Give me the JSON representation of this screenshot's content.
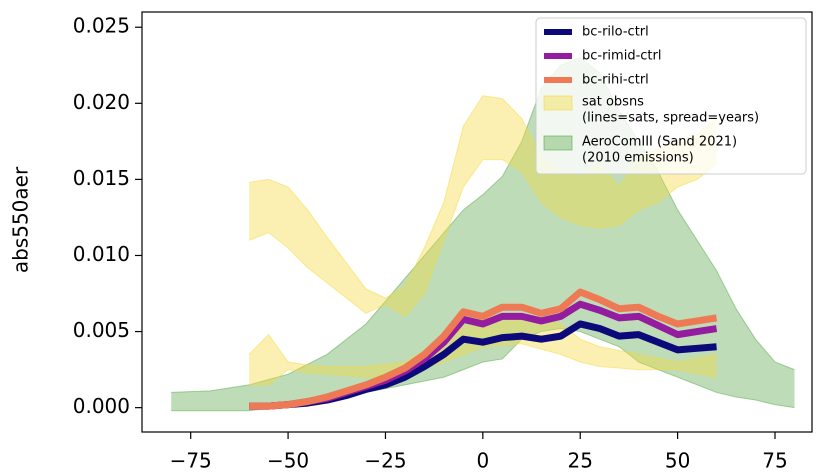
{
  "chart_data": {
    "type": "line",
    "ylabel": "abs550aer",
    "xlim": [
      -87.5,
      84.5
    ],
    "ylim": [
      -0.0016,
      0.026
    ],
    "xticks": [
      {
        "value": -75,
        "label": "−75"
      },
      {
        "value": -50,
        "label": "−50"
      },
      {
        "value": -25,
        "label": "−25"
      },
      0,
      25,
      50,
      75
    ],
    "yticks": [
      {
        "value": 0,
        "label": "0.000"
      },
      {
        "value": 0.005,
        "label": "0.005"
      },
      {
        "value": 0.01,
        "label": "0.010"
      },
      {
        "value": 0.015,
        "label": "0.015"
      },
      {
        "value": 0.02,
        "label": "0.020"
      },
      {
        "value": 0.025,
        "label": "0.025"
      }
    ],
    "legend": "upper right",
    "bands": [
      {
        "name": [
          "AeroComIII (Sand 2021)",
          "(2010 emissions)"
        ],
        "color": "#5aa84a",
        "pieces": [
          {
            "x": [
              -80,
              -70,
              -60,
              -50,
              -40,
              -30,
              -20,
              -10,
              -5,
              0,
              5,
              10,
              15,
              20,
              25,
              30,
              35,
              40,
              45,
              50,
              55,
              60,
              65,
              70,
              75,
              80
            ],
            "lower": [
              -0.0002,
              -0.0002,
              -0.0002,
              0.0001,
              0.0005,
              0.001,
              0.0015,
              0.002,
              0.0025,
              0.003,
              0.0032,
              0.0045,
              0.005,
              0.0052,
              0.005,
              0.0045,
              0.004,
              0.003,
              0.0025,
              0.002,
              0.0015,
              0.001,
              0.0007,
              0.0005,
              0.0002,
              0.0
            ],
            "upper": [
              0.001,
              0.0011,
              0.0015,
              0.0022,
              0.0035,
              0.0055,
              0.0085,
              0.0115,
              0.013,
              0.014,
              0.0152,
              0.0175,
              0.021,
              0.0225,
              0.023,
              0.022,
              0.0195,
              0.0175,
              0.0155,
              0.013,
              0.011,
              0.009,
              0.0065,
              0.0045,
              0.003,
              0.0025
            ]
          }
        ]
      },
      {
        "name": [
          "sat obsns",
          "(lines=sats, spread=years)"
        ],
        "color": "#f5d93c",
        "pieces": [
          {
            "x": [
              -60,
              -55,
              -50,
              -45,
              -40,
              -35,
              -30,
              -25,
              -20,
              -15,
              -10,
              -5,
              0,
              5,
              10,
              15,
              20,
              25,
              30,
              35,
              40,
              45,
              50,
              55,
              60
            ],
            "lower": [
              0.011,
              0.0115,
              0.0105,
              0.0092,
              0.0082,
              0.0072,
              0.0062,
              0.0068,
              0.006,
              0.0075,
              0.011,
              0.0145,
              0.0163,
              0.0163,
              0.0155,
              0.0135,
              0.0125,
              0.012,
              0.0118,
              0.012,
              0.013,
              0.0135,
              0.0145,
              0.015,
              0.016
            ],
            "upper": [
              0.0148,
              0.015,
              0.0145,
              0.013,
              0.0112,
              0.0095,
              0.0078,
              0.0072,
              0.008,
              0.0105,
              0.0135,
              0.0185,
              0.0205,
              0.0203,
              0.019,
              0.0165,
              0.0155,
              0.0152,
              0.016,
              0.0145,
              0.0165,
              0.017,
              0.0175,
              0.018,
              0.019
            ]
          },
          {
            "x": [
              -60,
              -55,
              -50,
              -45,
              -40,
              -30,
              -20,
              -10,
              0,
              10,
              20,
              25,
              30,
              40,
              50,
              60
            ],
            "lower": [
              0.0015,
              0.0015,
              0.0025,
              0.0023,
              0.0022,
              0.002,
              0.0022,
              0.003,
              0.004,
              0.0042,
              0.0035,
              0.003,
              0.0027,
              0.0025,
              0.0025,
              0.002
            ],
            "upper": [
              0.0035,
              0.0048,
              0.003,
              0.0028,
              0.0027,
              0.0027,
              0.003,
              0.0045,
              0.006,
              0.0062,
              0.0055,
              0.0045,
              0.004,
              0.0035,
              0.003,
              0.0035
            ]
          }
        ]
      }
    ],
    "x": [
      -60,
      -55,
      -50,
      -45,
      -40,
      -35,
      -30,
      -25,
      -20,
      -15,
      -10,
      -5,
      0,
      5,
      10,
      15,
      20,
      25,
      30,
      35,
      40,
      45,
      50,
      55,
      60
    ],
    "series": [
      {
        "name": "bc-rilo-ctrl",
        "color": "#0c0a7a",
        "values": [
          0.0001,
          0.0001,
          0.0002,
          0.0003,
          0.0005,
          0.0008,
          0.0012,
          0.0015,
          0.002,
          0.0027,
          0.0035,
          0.0045,
          0.0043,
          0.0046,
          0.0047,
          0.0045,
          0.0047,
          0.0055,
          0.0052,
          0.0047,
          0.0048,
          0.0043,
          0.0038,
          0.0039,
          0.004
        ]
      },
      {
        "name": "bc-rimid-ctrl",
        "color": "#941c9e",
        "values": [
          0.0001,
          0.0001,
          0.0002,
          0.0004,
          0.0006,
          0.001,
          0.0014,
          0.0018,
          0.0024,
          0.0032,
          0.0043,
          0.0058,
          0.0055,
          0.006,
          0.006,
          0.0057,
          0.006,
          0.0068,
          0.0064,
          0.0059,
          0.006,
          0.0054,
          0.0048,
          0.005,
          0.0052
        ]
      },
      {
        "name": "bc-rihi-ctrl",
        "color": "#ee7a55",
        "values": [
          0.0001,
          0.0001,
          0.0002,
          0.0004,
          0.0007,
          0.0011,
          0.0015,
          0.002,
          0.0026,
          0.0035,
          0.0047,
          0.0063,
          0.006,
          0.0066,
          0.0066,
          0.0062,
          0.0065,
          0.0076,
          0.0071,
          0.0065,
          0.0066,
          0.006,
          0.0055,
          0.0057,
          0.0059
        ]
      }
    ]
  }
}
